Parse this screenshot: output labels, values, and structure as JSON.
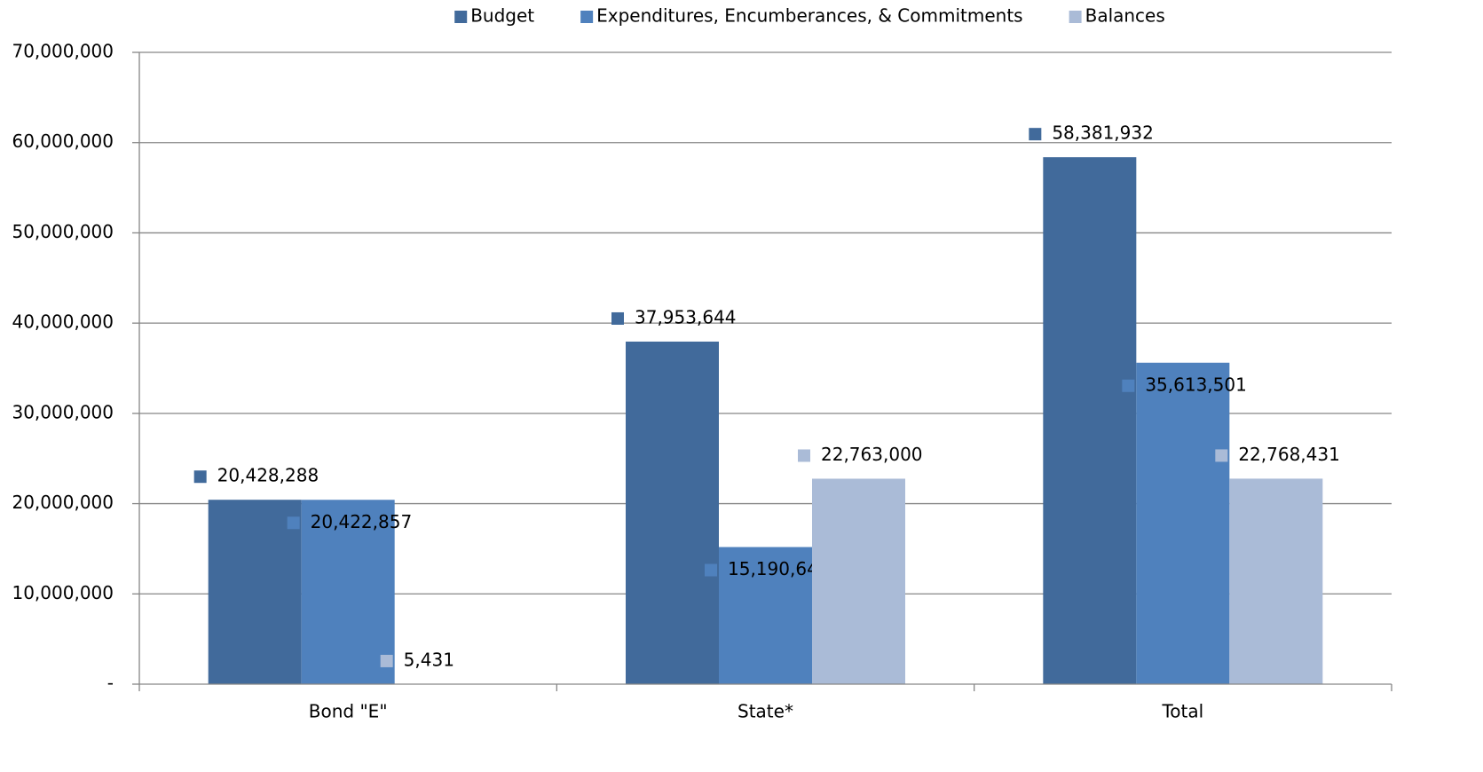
{
  "chart_data": {
    "type": "bar",
    "categories": [
      "Bond \"E\"",
      "State*",
      "Total"
    ],
    "series": [
      {
        "name": "Budget",
        "color": "#416a9b",
        "values": [
          20428288,
          37953644,
          58381932
        ],
        "value_labels": [
          "20,428,288",
          "37,953,644",
          "58,381,932"
        ]
      },
      {
        "name": "Expenditures, Encumberances, & Commitments",
        "color": "#4f81bd",
        "values": [
          20422857,
          15190644,
          35613501
        ],
        "value_labels": [
          "20,422,857",
          "15,190,644",
          "35,613,501"
        ]
      },
      {
        "name": "Balances",
        "color": "#aabbd7",
        "values": [
          5431,
          22763000,
          22768431
        ],
        "value_labels": [
          "5,431",
          "22,763,000",
          "22,768,431"
        ]
      }
    ],
    "ylim": [
      0,
      70000000
    ],
    "yticks": [
      {
        "value": 0,
        "label": "-"
      },
      {
        "value": 10000000,
        "label": "10,000,000"
      },
      {
        "value": 20000000,
        "label": "20,000,000"
      },
      {
        "value": 30000000,
        "label": "30,000,000"
      },
      {
        "value": 40000000,
        "label": "40,000,000"
      },
      {
        "value": 50000000,
        "label": "50,000,000"
      },
      {
        "value": 60000000,
        "label": "60,000,000"
      },
      {
        "value": 70000000,
        "label": "70,000,000"
      }
    ],
    "grid": true,
    "legend": "top"
  }
}
